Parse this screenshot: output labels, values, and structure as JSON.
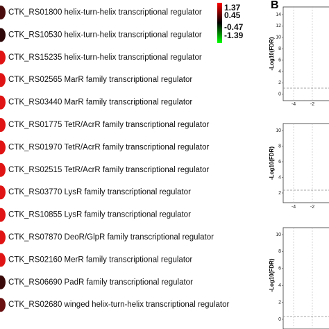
{
  "panel_label": "B",
  "rows": [
    {
      "label": "CTK_RS01800 helix-turn-helix transcriptional regulator",
      "color": "#4a0c0c"
    },
    {
      "label": "CTK_RS10530 helix-turn-helix transcriptional regulator",
      "color": "#2e0808"
    },
    {
      "label": "CTK_RS15235 helix-turn-helix transcriptional regulator",
      "color": "#e01414"
    },
    {
      "label": "CTK_RS02565 MarR family transcriptional regulator",
      "color": "#e01414"
    },
    {
      "label": "CTK_RS03440 MarR family transcriptional regulator",
      "color": "#e01414"
    },
    {
      "label": "CTK_RS01775 TetR/AcrR family transcriptional regulator",
      "color": "#e01414"
    },
    {
      "label": "CTK_RS01970 TetR/AcrR family transcriptional regulator",
      "color": "#e01414"
    },
    {
      "label": "CTK_RS02515 TetR/AcrR family transcriptional regulator",
      "color": "#e01414"
    },
    {
      "label": "CTK_RS03770 LysR family transcriptional regulator",
      "color": "#e01414"
    },
    {
      "label": "CTK_RS10855 LysR family transcriptional regulator",
      "color": "#e01414"
    },
    {
      "label": "CTK_RS07870 DeoR/GlpR family transcriptional regulator",
      "color": "#e01414"
    },
    {
      "label": "CTK_RS02160 MerR family transcriptional regulator",
      "color": "#e01414"
    },
    {
      "label": "CTK_RS06690 PadR family transcriptional regulator",
      "color": "#3a0a0a"
    },
    {
      "label": "CTK_RS02680 winged helix-turn-helix transcriptional regulator",
      "color": "#6a1010"
    }
  ],
  "color_scale": {
    "labels": [
      "1.37",
      "0.45",
      "-0.47",
      "-1.39"
    ]
  },
  "plots": [
    {
      "y_label": "-Log10(FDR)",
      "yticks": [
        "14",
        "12",
        "10",
        "8",
        "6",
        "4",
        "2",
        "0"
      ],
      "xticks": [
        "-4",
        "-2"
      ]
    },
    {
      "y_label": "-Log10(FDR)",
      "yticks": [
        "10",
        "8",
        "6",
        "4",
        "2"
      ],
      "xticks": [
        "-4",
        "-2"
      ]
    },
    {
      "y_label": "-Log10(FDR)",
      "yticks": [
        "10",
        "8",
        "6",
        "4",
        "2",
        "0"
      ],
      "xticks": []
    }
  ]
}
